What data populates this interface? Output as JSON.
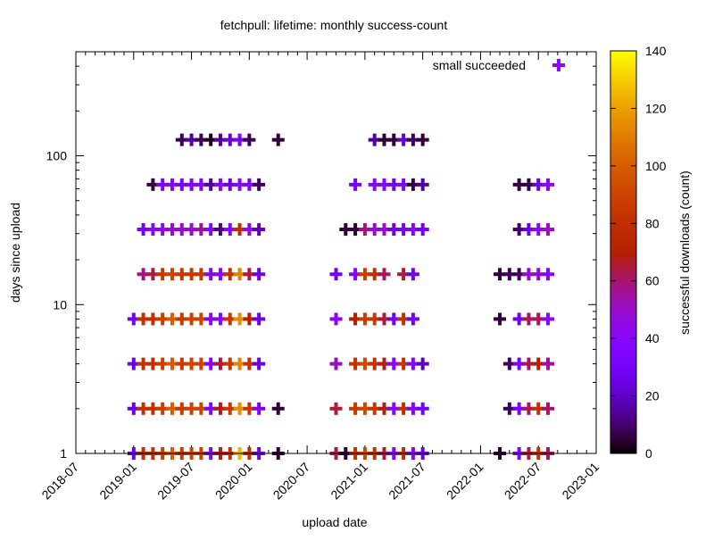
{
  "chart_data": {
    "type": "scatter",
    "title": "fetchpull: lifetime: monthly success-count",
    "xlabel": "upload date",
    "ylabel": "days since upload",
    "xlim": [
      "2018-07",
      "2023-01"
    ],
    "ylim": [
      1,
      500
    ],
    "y_scale": "log",
    "x_ticks": [
      "2018-07",
      "2019-01",
      "2019-07",
      "2020-01",
      "2020-07",
      "2021-01",
      "2021-07",
      "2022-01",
      "2022-07",
      "2023-01"
    ],
    "y_ticks": [
      {
        "value": 1,
        "label": "1"
      },
      {
        "value": 10,
        "label": "10"
      },
      {
        "value": 100,
        "label": "100"
      }
    ],
    "grid": false,
    "legend": {
      "placement": "top-right",
      "entries": [
        {
          "name": "small succeeded",
          "color": "#8c0bff"
        }
      ]
    },
    "colorbar": {
      "label": "successful downloads (count)",
      "range": [
        0,
        140
      ],
      "ticks": [
        "0",
        "20",
        "40",
        "60",
        "80",
        "100",
        "120",
        "140"
      ],
      "palette": "black-purple-red-orange-yellow"
    },
    "series": [
      {
        "name": "small succeeded",
        "rows": [
          {
            "days": 1,
            "points": [
              [
                "2019-01",
                25
              ],
              [
                "2019-02",
                80
              ],
              [
                "2019-03",
                80
              ],
              [
                "2019-04",
                88
              ],
              [
                "2019-05",
                100
              ],
              [
                "2019-06",
                85
              ],
              [
                "2019-07",
                90
              ],
              [
                "2019-08",
                90
              ],
              [
                "2019-09",
                35
              ],
              [
                "2019-10",
                68
              ],
              [
                "2019-11",
                82
              ],
              [
                "2019-12",
                125
              ],
              [
                "2020-01",
                80
              ],
              [
                "2020-02",
                25
              ],
              [
                "2020-04",
                5
              ],
              [
                "2020-10",
                65
              ],
              [
                "2020-11",
                5
              ],
              [
                "2020-12",
                82
              ],
              [
                "2021-01",
                92
              ],
              [
                "2021-02",
                82
              ],
              [
                "2021-03",
                65
              ],
              [
                "2021-04",
                38
              ],
              [
                "2021-05",
                80
              ],
              [
                "2021-06",
                38
              ],
              [
                "2021-07",
                25
              ],
              [
                "2022-03",
                5
              ],
              [
                "2022-05",
                35
              ],
              [
                "2022-06",
                65
              ],
              [
                "2022-07",
                82
              ],
              [
                "2022-08",
                62
              ]
            ]
          },
          {
            "days": 2,
            "points": [
              [
                "2019-01",
                25
              ],
              [
                "2019-02",
                80
              ],
              [
                "2019-03",
                80
              ],
              [
                "2019-04",
                88
              ],
              [
                "2019-05",
                100
              ],
              [
                "2019-06",
                85
              ],
              [
                "2019-07",
                90
              ],
              [
                "2019-08",
                90
              ],
              [
                "2019-09",
                35
              ],
              [
                "2019-10",
                68
              ],
              [
                "2019-11",
                85
              ],
              [
                "2019-12",
                115
              ],
              [
                "2020-01",
                85
              ],
              [
                "2020-02",
                33
              ],
              [
                "2020-04",
                5
              ],
              [
                "2020-10",
                65
              ],
              [
                "2020-12",
                85
              ],
              [
                "2021-01",
                92
              ],
              [
                "2021-02",
                85
              ],
              [
                "2021-03",
                68
              ],
              [
                "2021-04",
                38
              ],
              [
                "2021-05",
                80
              ],
              [
                "2021-06",
                38
              ],
              [
                "2021-07",
                28
              ],
              [
                "2022-04",
                8
              ],
              [
                "2022-05",
                33
              ],
              [
                "2022-06",
                62
              ],
              [
                "2022-07",
                80
              ],
              [
                "2022-08",
                60
              ]
            ]
          },
          {
            "days": 4,
            "points": [
              [
                "2019-01",
                25
              ],
              [
                "2019-02",
                80
              ],
              [
                "2019-03",
                80
              ],
              [
                "2019-04",
                88
              ],
              [
                "2019-05",
                100
              ],
              [
                "2019-06",
                85
              ],
              [
                "2019-07",
                90
              ],
              [
                "2019-08",
                90
              ],
              [
                "2019-09",
                35
              ],
              [
                "2019-10",
                65
              ],
              [
                "2019-11",
                85
              ],
              [
                "2019-12",
                112
              ],
              [
                "2020-01",
                82
              ],
              [
                "2020-02",
                25
              ],
              [
                "2020-10",
                52
              ],
              [
                "2020-12",
                82
              ],
              [
                "2021-01",
                92
              ],
              [
                "2021-02",
                82
              ],
              [
                "2021-03",
                68
              ],
              [
                "2021-04",
                38
              ],
              [
                "2021-05",
                82
              ],
              [
                "2021-06",
                38
              ],
              [
                "2021-07",
                18
              ],
              [
                "2022-04",
                8
              ],
              [
                "2022-05",
                32
              ],
              [
                "2022-06",
                62
              ],
              [
                "2022-07",
                70
              ],
              [
                "2022-08",
                55
              ]
            ]
          },
          {
            "days": 8,
            "points": [
              [
                "2019-01",
                28
              ],
              [
                "2019-02",
                80
              ],
              [
                "2019-03",
                80
              ],
              [
                "2019-04",
                88
              ],
              [
                "2019-05",
                100
              ],
              [
                "2019-06",
                85
              ],
              [
                "2019-07",
                90
              ],
              [
                "2019-08",
                90
              ],
              [
                "2019-09",
                38
              ],
              [
                "2019-10",
                40
              ],
              [
                "2019-11",
                85
              ],
              [
                "2019-12",
                115
              ],
              [
                "2020-01",
                72
              ],
              [
                "2020-02",
                25
              ],
              [
                "2020-10",
                40
              ],
              [
                "2020-12",
                70
              ],
              [
                "2021-01",
                88
              ],
              [
                "2021-02",
                85
              ],
              [
                "2021-03",
                65
              ],
              [
                "2021-04",
                28
              ],
              [
                "2021-05",
                82
              ],
              [
                "2021-06",
                28
              ],
              [
                "2022-03",
                5
              ],
              [
                "2022-05",
                28
              ],
              [
                "2022-06",
                62
              ],
              [
                "2022-07",
                62
              ],
              [
                "2022-08",
                42
              ]
            ]
          },
          {
            "days": 16,
            "points": [
              [
                "2019-02",
                58
              ],
              [
                "2019-03",
                65
              ],
              [
                "2019-04",
                85
              ],
              [
                "2019-05",
                90
              ],
              [
                "2019-06",
                85
              ],
              [
                "2019-07",
                85
              ],
              [
                "2019-08",
                85
              ],
              [
                "2019-09",
                38
              ],
              [
                "2019-10",
                38
              ],
              [
                "2019-11",
                82
              ],
              [
                "2019-12",
                112
              ],
              [
                "2020-01",
                65
              ],
              [
                "2020-02",
                25
              ],
              [
                "2020-10",
                28
              ],
              [
                "2020-12",
                38
              ],
              [
                "2021-01",
                88
              ],
              [
                "2021-02",
                80
              ],
              [
                "2021-03",
                62
              ],
              [
                "2021-05",
                65
              ],
              [
                "2021-06",
                28
              ],
              [
                "2022-03",
                5
              ],
              [
                "2022-04",
                8
              ],
              [
                "2022-05",
                8
              ],
              [
                "2022-06",
                48
              ],
              [
                "2022-07",
                48
              ],
              [
                "2022-08",
                40
              ]
            ]
          },
          {
            "days": 32,
            "points": [
              [
                "2019-02",
                28
              ],
              [
                "2019-03",
                40
              ],
              [
                "2019-04",
                45
              ],
              [
                "2019-05",
                48
              ],
              [
                "2019-06",
                48
              ],
              [
                "2019-07",
                48
              ],
              [
                "2019-08",
                55
              ],
              [
                "2019-09",
                35
              ],
              [
                "2019-10",
                12
              ],
              [
                "2019-11",
                38
              ],
              [
                "2019-12",
                78
              ],
              [
                "2020-01",
                45
              ],
              [
                "2020-02",
                18
              ],
              [
                "2020-11",
                5
              ],
              [
                "2020-12",
                5
              ],
              [
                "2021-01",
                58
              ],
              [
                "2021-02",
                48
              ],
              [
                "2021-03",
                48
              ],
              [
                "2021-04",
                25
              ],
              [
                "2021-05",
                28
              ],
              [
                "2021-06",
                38
              ],
              [
                "2021-07",
                28
              ],
              [
                "2022-05",
                10
              ],
              [
                "2022-06",
                25
              ],
              [
                "2022-07",
                40
              ],
              [
                "2022-08",
                50
              ]
            ]
          },
          {
            "days": 64,
            "points": [
              [
                "2019-03",
                6
              ],
              [
                "2019-04",
                33
              ],
              [
                "2019-05",
                38
              ],
              [
                "2019-06",
                32
              ],
              [
                "2019-07",
                35
              ],
              [
                "2019-08",
                38
              ],
              [
                "2019-09",
                15
              ],
              [
                "2019-10",
                40
              ],
              [
                "2019-11",
                25
              ],
              [
                "2019-12",
                38
              ],
              [
                "2020-01",
                36
              ],
              [
                "2020-02",
                8
              ],
              [
                "2020-12",
                30
              ],
              [
                "2021-02",
                38
              ],
              [
                "2021-03",
                38
              ],
              [
                "2021-04",
                28
              ],
              [
                "2021-05",
                36
              ],
              [
                "2021-06",
                5
              ],
              [
                "2021-07",
                15
              ],
              [
                "2022-05",
                6
              ],
              [
                "2022-06",
                6
              ],
              [
                "2022-07",
                25
              ],
              [
                "2022-08",
                40
              ]
            ]
          },
          {
            "days": 128,
            "points": [
              [
                "2019-06",
                8
              ],
              [
                "2019-07",
                15
              ],
              [
                "2019-08",
                8
              ],
              [
                "2019-09",
                3
              ],
              [
                "2019-10",
                15
              ],
              [
                "2019-11",
                22
              ],
              [
                "2019-12",
                33
              ],
              [
                "2020-01",
                8
              ],
              [
                "2020-04",
                5
              ],
              [
                "2021-02",
                15
              ],
              [
                "2021-03",
                5
              ],
              [
                "2021-04",
                5
              ],
              [
                "2021-05",
                22
              ],
              [
                "2021-06",
                8
              ],
              [
                "2021-07",
                5
              ]
            ]
          }
        ]
      }
    ]
  }
}
